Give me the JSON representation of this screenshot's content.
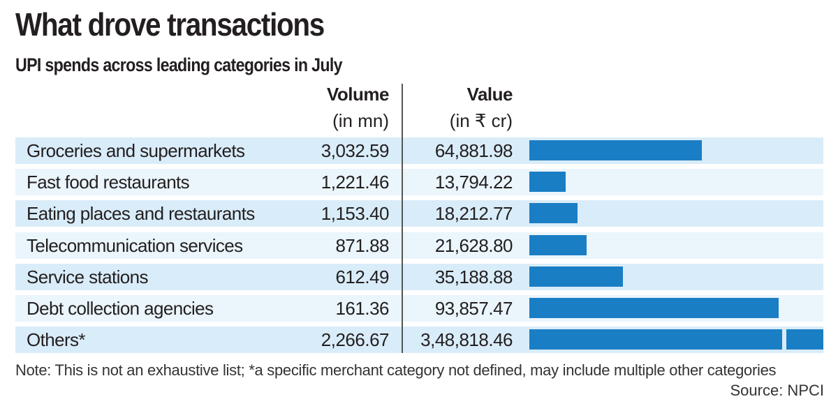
{
  "chart_data": {
    "type": "table",
    "title": "What drove transactions",
    "subtitle": "UPI spends across leading categories in July",
    "columns": [
      {
        "name": "Volume",
        "unit": "(in mn)"
      },
      {
        "name": "Value",
        "unit": "(in ₹ cr)"
      }
    ],
    "bar_series": "Value",
    "bar_color": "#1a7ec5",
    "row_colors": [
      "#d9ecf9",
      "#eaf5fc"
    ],
    "rows": [
      {
        "category": "Groceries and supermarkets",
        "volume": "3,032.59",
        "value": "64,881.98",
        "value_num": 64881.98,
        "truncated": false
      },
      {
        "category": "Fast food restaurants",
        "volume": "1,221.46",
        "value": "13,794.22",
        "value_num": 13794.22,
        "truncated": false
      },
      {
        "category": "Eating places and restaurants",
        "volume": "1,153.40",
        "value": "18,212.77",
        "value_num": 18212.77,
        "truncated": false
      },
      {
        "category": "Telecommunication services",
        "volume": "871.88",
        "value": "21,628.80",
        "value_num": 21628.8,
        "truncated": false
      },
      {
        "category": "Service stations",
        "volume": "612.49",
        "value": "35,188.88",
        "value_num": 35188.88,
        "truncated": false
      },
      {
        "category": "Debt collection agencies",
        "volume": "161.36",
        "value": "93,857.47",
        "value_num": 93857.47,
        "truncated": false
      },
      {
        "category": "Others*",
        "volume": "2,266.67",
        "value": "3,48,818.46",
        "value_num": 348818.46,
        "truncated": true
      }
    ],
    "note": "Note: This is not an exhaustive list; *a specific merchant category not defined, may include multiple other categories",
    "source": "Source: NPCI"
  }
}
